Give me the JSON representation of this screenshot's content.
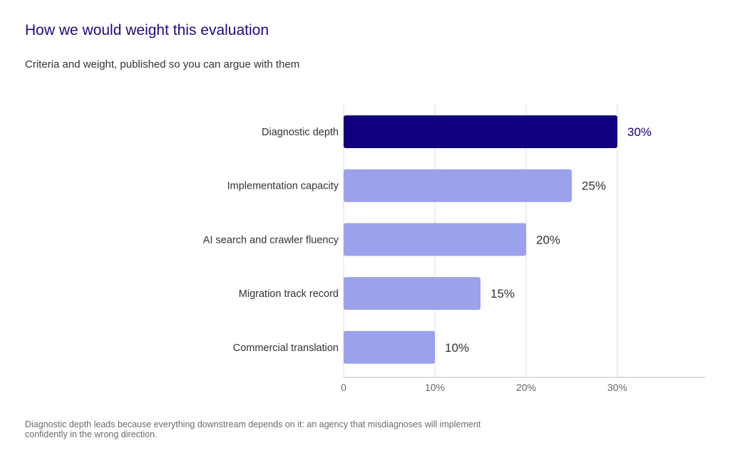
{
  "header": {
    "title": "How we would weight this evaluation",
    "subtitle": "Criteria and weight, published so you can argue with them"
  },
  "footnote": "Diagnostic depth leads because everything downstream depends on it: an agency that misdiagnoses will implement confidently in the wrong direction.",
  "colors": {
    "highlight": "#11007e",
    "bar": "#9ba1ea",
    "highlight_label": "#11007e",
    "label": "#333333",
    "grid": "#dddddd",
    "axis": "#bbbbbb",
    "tick": "#666666"
  },
  "chart_data": {
    "type": "bar",
    "orientation": "horizontal",
    "title": "How we would weight this evaluation",
    "subtitle": "Criteria and weight, published so you can argue with them",
    "categories": [
      "Diagnostic depth",
      "Implementation capacity",
      "AI search and crawler fluency",
      "Migration track record",
      "Commercial translation"
    ],
    "values": [
      30,
      25,
      20,
      15,
      10
    ],
    "value_labels": [
      "30%",
      "25%",
      "20%",
      "15%",
      "10%"
    ],
    "highlight_index": 0,
    "xlim": [
      0,
      40
    ],
    "xticks": [
      0,
      10,
      20,
      30
    ],
    "xtick_labels": [
      "0",
      "10%",
      "20%",
      "30%"
    ],
    "grid": true,
    "legend": "none"
  }
}
